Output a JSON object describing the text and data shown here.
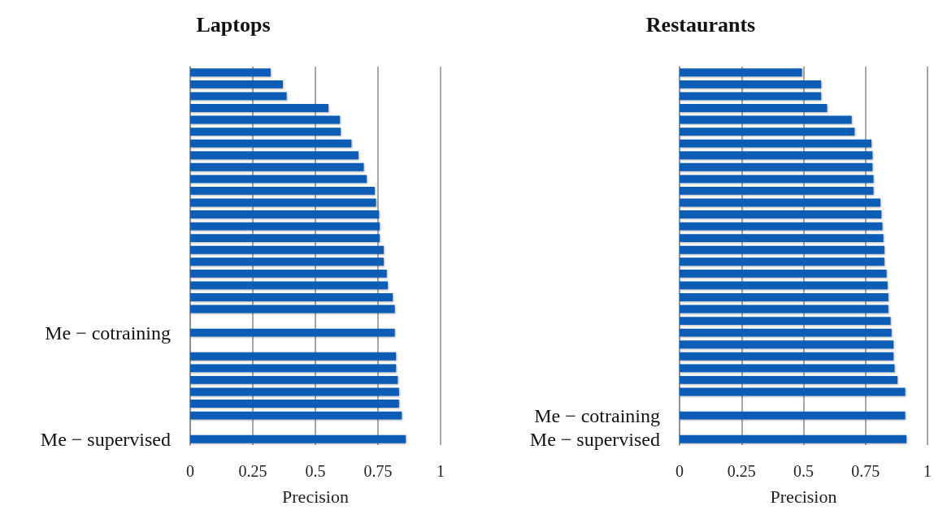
{
  "chart_data": [
    {
      "type": "bar",
      "title": "Laptops",
      "xlabel": "Precision",
      "orientation": "horizontal",
      "color": "#0b5cb5",
      "xlim": [
        0,
        1
      ],
      "xticks": [
        0,
        0.25,
        0.5,
        0.75,
        1
      ],
      "grid": "x",
      "categories": [
        null,
        null,
        null,
        null,
        null,
        null,
        null,
        null,
        null,
        null,
        null,
        null,
        null,
        null,
        null,
        null,
        null,
        null,
        null,
        null,
        null,
        null,
        "Me − cotraining",
        null,
        null,
        null,
        null,
        null,
        null,
        null,
        null,
        "Me − supervised"
      ],
      "values": [
        0.321,
        0.37,
        0.385,
        0.552,
        0.598,
        0.601,
        0.644,
        0.672,
        0.693,
        0.705,
        0.737,
        0.742,
        0.754,
        0.757,
        0.757,
        0.773,
        0.773,
        0.785,
        0.789,
        0.809,
        0.817,
        null,
        0.817,
        null,
        0.822,
        0.822,
        0.829,
        0.834,
        0.834,
        0.845,
        null,
        0.861
      ]
    },
    {
      "type": "bar",
      "title": "Restaurants",
      "xlabel": "Precision",
      "orientation": "horizontal",
      "color": "#0b5cb5",
      "xlim": [
        0,
        1
      ],
      "xticks": [
        0,
        0.25,
        0.5,
        0.75,
        1
      ],
      "grid": "x",
      "categories": [
        null,
        null,
        null,
        null,
        null,
        null,
        null,
        null,
        null,
        null,
        null,
        null,
        null,
        null,
        null,
        null,
        null,
        null,
        null,
        null,
        null,
        null,
        null,
        null,
        null,
        null,
        null,
        null,
        null,
        "Me − cotraining",
        null,
        "Me − supervised"
      ],
      "values": [
        0.494,
        0.571,
        0.571,
        0.595,
        0.694,
        0.706,
        0.774,
        0.778,
        0.778,
        0.782,
        0.782,
        0.81,
        0.814,
        0.818,
        0.822,
        0.826,
        0.826,
        0.835,
        0.839,
        0.842,
        0.842,
        0.851,
        0.855,
        0.863,
        0.863,
        0.867,
        0.879,
        0.91,
        null,
        0.91,
        null,
        0.915
      ]
    }
  ]
}
